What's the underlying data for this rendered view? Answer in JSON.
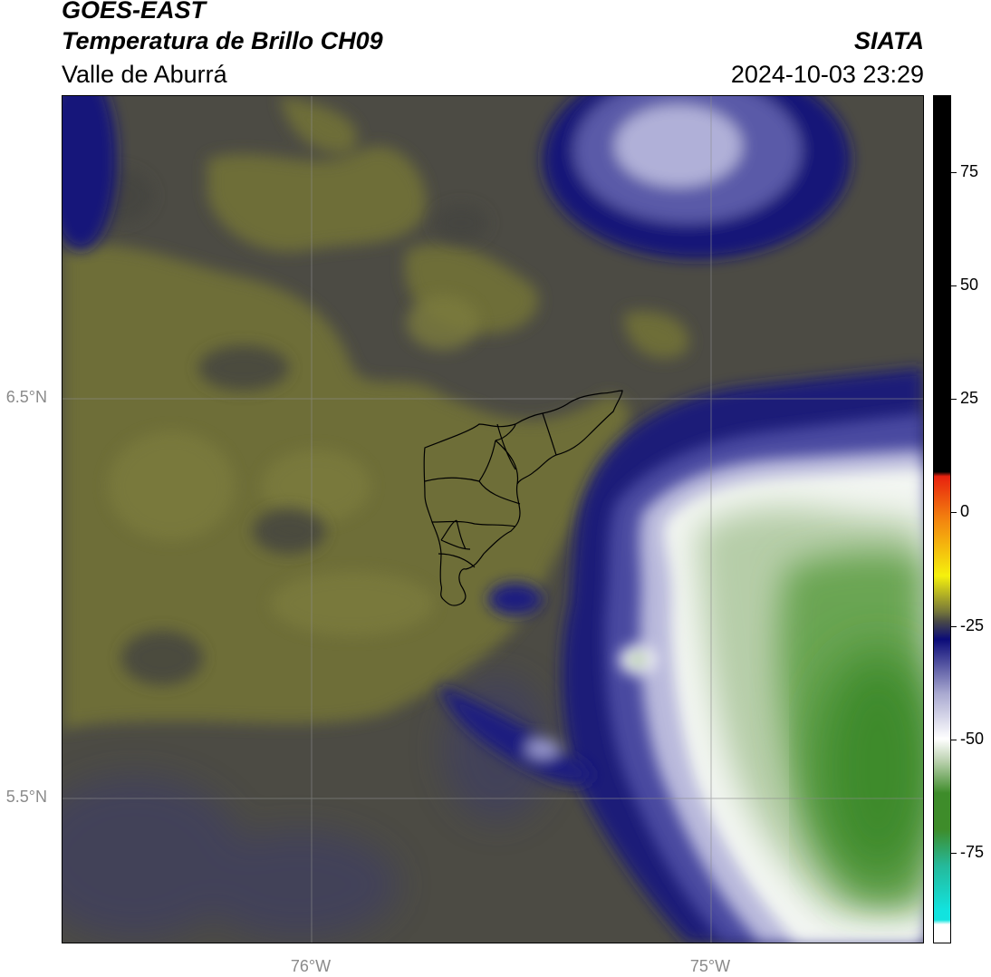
{
  "header": {
    "title_line1": "GOES-EAST",
    "title_line2": "Temperatura de Brillo CH09",
    "title_line3": "Valle de Aburrá",
    "org": "SIATA",
    "timestamp": "2024-10-03 23:29"
  },
  "axes": {
    "lat_labels": [
      {
        "label": "6.5°N",
        "value": 6.5
      },
      {
        "label": "5.5°N",
        "value": 5.5
      }
    ],
    "lon_labels": [
      {
        "label": "76°W",
        "value": -76.0
      },
      {
        "label": "75°W",
        "value": -75.0
      }
    ]
  },
  "colorbar": {
    "ticks": [
      {
        "label": "75",
        "value": 75
      },
      {
        "label": "50",
        "value": 50
      },
      {
        "label": "25",
        "value": 25
      },
      {
        "label": "0",
        "value": 0
      },
      {
        "label": "-25",
        "value": -25
      },
      {
        "label": "-50",
        "value": -50
      },
      {
        "label": "-75",
        "value": -75
      }
    ],
    "range": [
      -95,
      92
    ],
    "colors": {
      "warm_black": "#000000",
      "red": "#e8220f",
      "orange": "#f3880f",
      "yellow": "#f5f10d",
      "olive": "#74753a",
      "dark_gray": "#4a4a46",
      "navy": "#0b0b78",
      "lavender": "#a9a9d0",
      "white": "#ffffff",
      "light_green": "#b9d0ad",
      "green": "#3e8c2a",
      "teal": "#25b99a",
      "cyan": "#12e3df"
    }
  },
  "map": {
    "colors": {
      "background": "#4c4b44",
      "olive": "#707038",
      "navy": "#0d0d72",
      "blue_mid": "#3a3a90",
      "white": "#f4f7f4",
      "green": "#5c9a45"
    }
  }
}
